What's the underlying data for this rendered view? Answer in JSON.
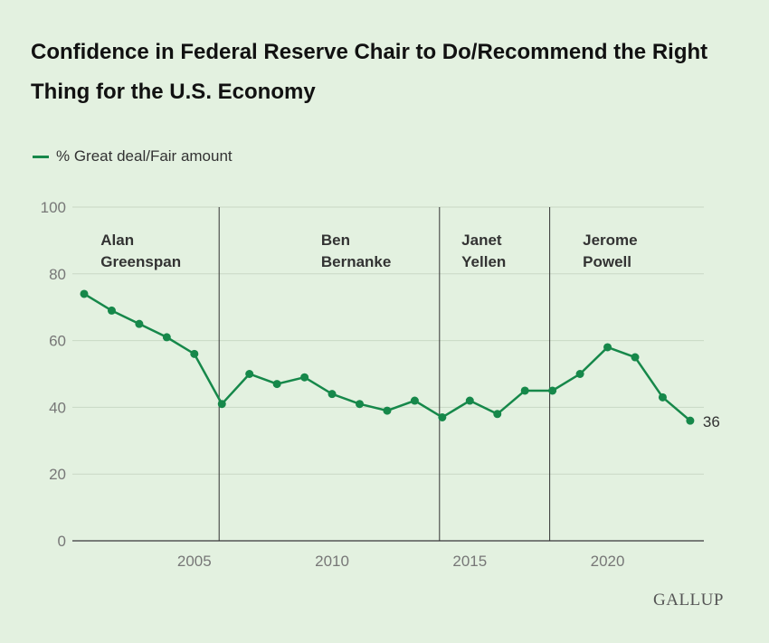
{
  "chart_data": {
    "type": "line",
    "title": "Confidence in Federal Reserve Chair to Do/Recommend the Right Thing for the U.S. Economy",
    "series": [
      {
        "name": "% Great deal/Fair amount",
        "color": "#16884a",
        "x": [
          2001,
          2002,
          2003,
          2004,
          2005,
          2006,
          2007,
          2008,
          2009,
          2010,
          2011,
          2012,
          2013,
          2014,
          2015,
          2016,
          2017,
          2018,
          2019,
          2020,
          2021,
          2022,
          2023
        ],
        "y": [
          74,
          69,
          65,
          61,
          56,
          41,
          50,
          47,
          49,
          44,
          41,
          39,
          42,
          37,
          42,
          38,
          45,
          45,
          50,
          58,
          55,
          43,
          36
        ]
      }
    ],
    "end_label": "36",
    "ylim": [
      0,
      100
    ],
    "yticks": [
      0,
      20,
      40,
      60,
      80,
      100
    ],
    "xticks": [
      2005,
      2010,
      2015,
      2020
    ],
    "grid": "horizontal",
    "legend_position": "top-left",
    "dividers": [
      2005.9,
      2013.9,
      2017.9
    ],
    "eras": [
      {
        "line1": "Alan",
        "line2": "Greenspan",
        "x": 2001.6
      },
      {
        "line1": "Ben",
        "line2": "Bernanke",
        "x": 2009.6
      },
      {
        "line1": "Janet",
        "line2": "Yellen",
        "x": 2014.7
      },
      {
        "line1": "Jerome",
        "line2": "Powell",
        "x": 2019.1
      }
    ]
  },
  "brand": "GALLUP"
}
